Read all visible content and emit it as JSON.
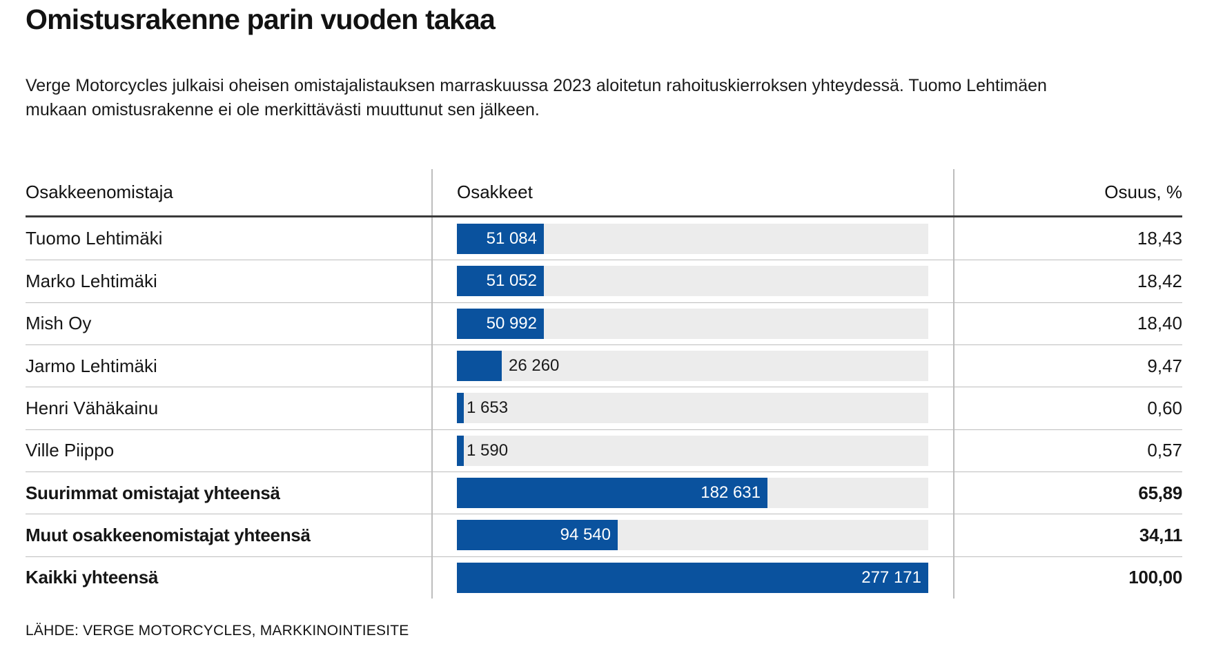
{
  "page": {
    "title": "Omistusrakenne parin vuoden takaa",
    "intro": "Verge Motorcycles julkaisi oheisen omistajalistauksen marraskuussa 2023 aloitetun rahoituskierroksen yhteydessä. Tuomo Lehtimäen mukaan omistusrakenne ei ole merkittävästi muuttunut sen jälkeen.",
    "source": "LÄHDE: VERGE MOTORCYCLES, MARKKINOINTIESITE"
  },
  "table": {
    "columns": {
      "shareholder": "Osakkeenomistaja",
      "shares": "Osakkeet",
      "share_pct": "Osuus, %"
    }
  },
  "chart_data": {
    "type": "bar",
    "orientation": "horizontal",
    "title": "Omistusrakenne parin vuoden takaa",
    "xlabel": "Osakkeet",
    "ylabel": "Osakkeenomistaja",
    "xlim": [
      0,
      277171
    ],
    "gridlines": false,
    "legend": "none",
    "categories": [
      "Tuomo Lehtimäki",
      "Marko Lehtimäki",
      "Mish Oy",
      "Jarmo Lehtimäki",
      "Henri Vähäkainu",
      "Ville Piippo",
      "Suurimmat omistajat yhteensä",
      "Muut osakkeenomistajat yhteensä",
      "Kaikki yhteensä"
    ],
    "values": [
      51084,
      51052,
      50992,
      26260,
      1653,
      1590,
      182631,
      94540,
      277171
    ],
    "value_labels": [
      "51 084",
      "51 052",
      "50 992",
      "26 260",
      "1 653",
      "1 590",
      "182 631",
      "94 540",
      "277 171"
    ],
    "percents": [
      18.43,
      18.42,
      18.4,
      9.47,
      0.6,
      0.57,
      65.89,
      34.11,
      100.0
    ],
    "percent_labels": [
      "18,43",
      "18,42",
      "18,40",
      "9,47",
      "0,60",
      "0,57",
      "65,89",
      "34,11",
      "100,00"
    ],
    "row_emphasis_bold": [
      false,
      false,
      false,
      false,
      false,
      false,
      true,
      true,
      true
    ],
    "colors": {
      "bar": "#0a529e",
      "track": "#ececec",
      "bar_label_inside": "#ffffff",
      "bar_label_outside": "#1a1a1a",
      "header_rule": "#3a3a3a",
      "row_separator": "#bdbdbd"
    }
  }
}
